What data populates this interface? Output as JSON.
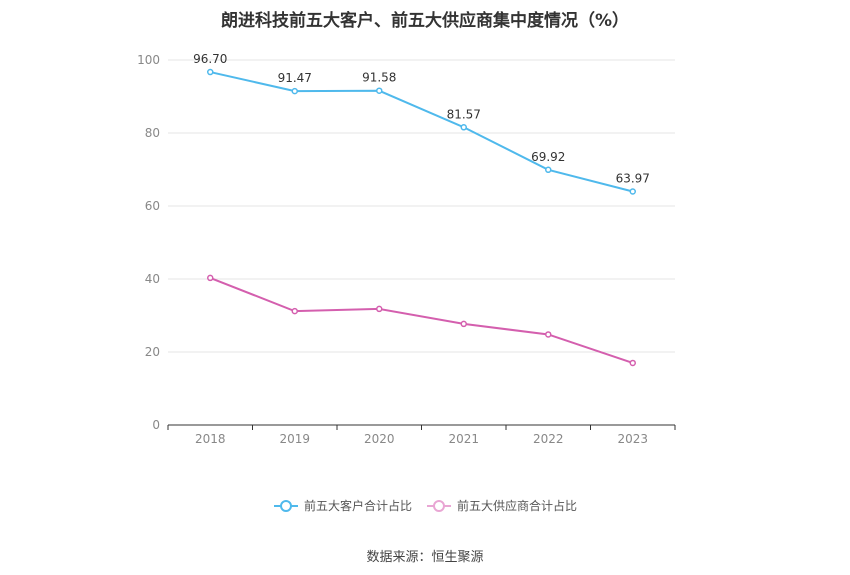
{
  "chart_data": {
    "type": "line",
    "title": "朗进科技前五大客户、前五大供应商集中度情况（%）",
    "x": [
      "2018",
      "2019",
      "2020",
      "2021",
      "2022",
      "2023"
    ],
    "ylim": [
      0,
      100
    ],
    "yticks": [
      "0",
      "20",
      "40",
      "60",
      "80",
      "100"
    ],
    "grid": true,
    "legend_position": "bottom",
    "series": [
      {
        "name": "前五大客户合计占比",
        "color": "#4fb9ec",
        "values": [
          96.7,
          91.47,
          91.58,
          81.57,
          69.92,
          63.97
        ],
        "labels": [
          "96.70",
          "91.47",
          "91.58",
          "81.57",
          "69.92",
          "63.97"
        ]
      },
      {
        "name": "前五大供应商合计占比",
        "color": "#d45fae",
        "values": [
          40.3,
          31.2,
          31.8,
          27.7,
          24.8,
          17.0
        ],
        "labels": []
      }
    ]
  },
  "source": "数据来源：恒生聚源"
}
